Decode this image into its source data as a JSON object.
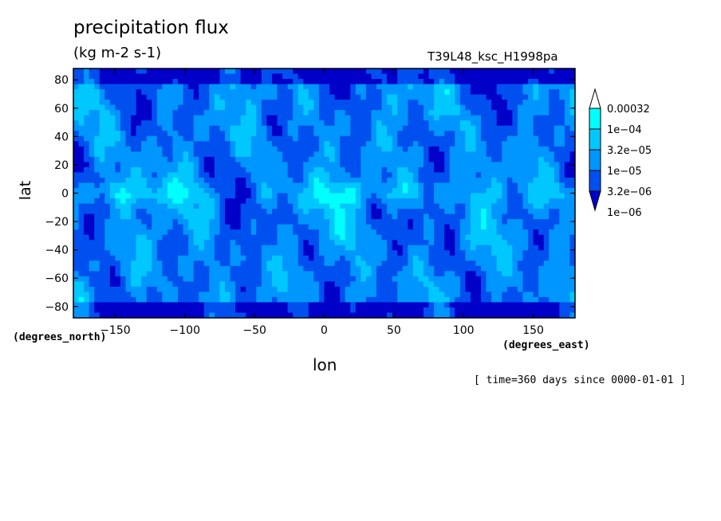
{
  "chart_data": {
    "type": "heatmap",
    "title": "precipitation flux",
    "units": "(kg m-2 s-1)",
    "run_id": "T39L48_ksc_H1998pa",
    "xlabel": "lon",
    "ylabel": "lat",
    "x_units": "(degrees_east)",
    "y_units": "(degrees_north)",
    "timestamp": "[ time=360 days since 0000-01-01 ]",
    "xlim": [
      -180,
      180
    ],
    "ylim": [
      -88,
      88
    ],
    "x_ticks": [
      -150,
      -100,
      -50,
      0,
      50,
      100,
      150
    ],
    "x_tick_labels": [
      "−150",
      "−100",
      "−50",
      "0",
      "50",
      "100",
      "150"
    ],
    "y_ticks": [
      80,
      60,
      40,
      20,
      0,
      -20,
      -40,
      -60,
      -80
    ],
    "y_tick_labels": [
      "80",
      "60",
      "40",
      "20",
      "0",
      "−20",
      "−40",
      "−60",
      "−80"
    ],
    "colorbar": {
      "levels": [
        "0.00032",
        "1e−04",
        "3.2e−05",
        "1e−05",
        "3.2e−06",
        "1e−06"
      ],
      "colors": [
        "#ffffff",
        "#00ffff",
        "#00c8ff",
        "#0096ff",
        "#0050f0",
        "#0000c8"
      ]
    }
  }
}
